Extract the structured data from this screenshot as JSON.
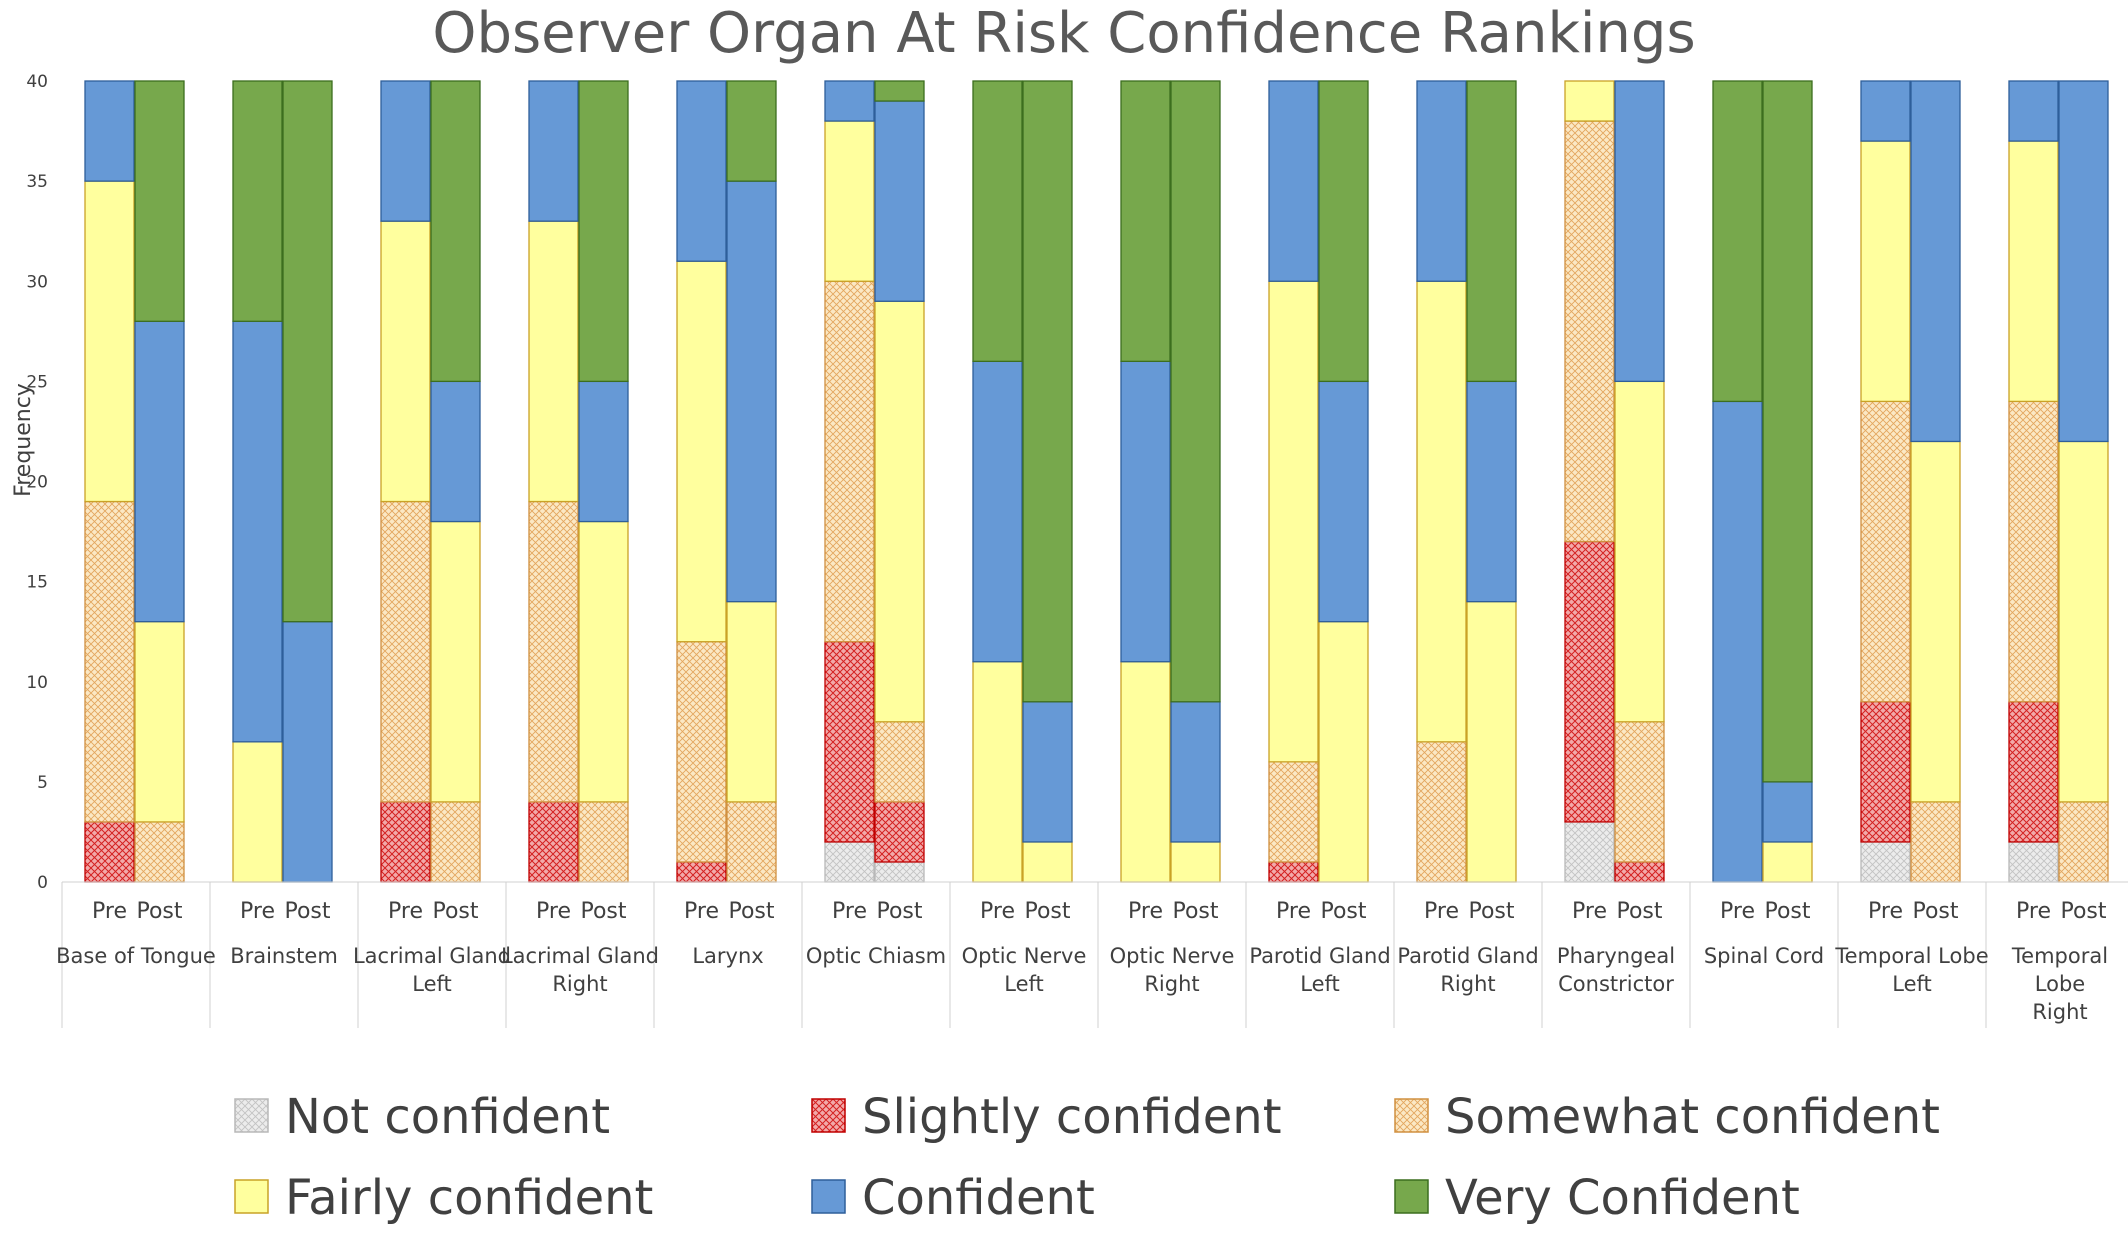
{
  "chart_data": {
    "type": "bar",
    "stacked": true,
    "title": "Observer Organ At Risk Confidence Rankings",
    "ylabel": "Frequency",
    "xlabel": "",
    "ylim": [
      0,
      40
    ],
    "yticks": [
      0,
      5,
      10,
      15,
      20,
      25,
      30,
      35,
      40
    ],
    "grid": false,
    "legend_position": "bottom",
    "sub_labels": [
      "Pre",
      "Post"
    ],
    "categories": [
      [
        "Base of Tongue"
      ],
      [
        "Brainstem"
      ],
      [
        "Lacrimal Gland",
        "Left"
      ],
      [
        "Lacrimal Gland",
        "Right"
      ],
      [
        "Larynx"
      ],
      [
        "Optic Chiasm"
      ],
      [
        "Optic Nerve",
        "Left"
      ],
      [
        "Optic Nerve",
        "Right"
      ],
      [
        "Parotid Gland",
        "Left"
      ],
      [
        "Parotid Gland",
        "Right"
      ],
      [
        "Pharyngeal",
        "Constrictor"
      ],
      [
        "Spinal Cord"
      ],
      [
        "Temporal Lobe",
        "Left"
      ],
      [
        "Temporal",
        "Lobe",
        "Right"
      ]
    ],
    "series": [
      {
        "name": "Not confident",
        "color": "#ececec",
        "stroke": "#b8b8b8",
        "pre": [
          0,
          0,
          0,
          0,
          0,
          2,
          0,
          0,
          0,
          0,
          3,
          0,
          2,
          2
        ],
        "post": [
          0,
          0,
          0,
          0,
          0,
          1,
          0,
          0,
          0,
          0,
          0,
          0,
          0,
          0
        ]
      },
      {
        "name": "Slightly confident",
        "color": "#e86a6a",
        "stroke": "#c00000",
        "pre": [
          3,
          0,
          4,
          4,
          1,
          10,
          0,
          0,
          1,
          0,
          14,
          0,
          7,
          7
        ],
        "post": [
          0,
          0,
          0,
          0,
          0,
          3,
          0,
          0,
          0,
          0,
          1,
          0,
          0,
          0
        ]
      },
      {
        "name": "Somewhat confident",
        "color": "#f6dca8",
        "stroke": "#d09040",
        "pre": [
          16,
          0,
          15,
          15,
          11,
          18,
          0,
          0,
          5,
          7,
          21,
          0,
          15,
          15
        ],
        "post": [
          3,
          0,
          4,
          4,
          4,
          4,
          0,
          0,
          0,
          0,
          7,
          0,
          4,
          4
        ]
      },
      {
        "name": "Fairly confident",
        "color": "#ffff9e",
        "stroke": "#c9a227",
        "pre": [
          16,
          7,
          14,
          14,
          19,
          8,
          11,
          11,
          24,
          23,
          2,
          0,
          13,
          13
        ],
        "post": [
          10,
          0,
          14,
          14,
          10,
          21,
          2,
          2,
          13,
          14,
          17,
          2,
          18,
          18
        ]
      },
      {
        "name": "Confident",
        "color": "#6699d6",
        "stroke": "#2e5f9a",
        "pre": [
          5,
          21,
          7,
          7,
          9,
          2,
          15,
          15,
          10,
          10,
          0,
          24,
          3,
          3
        ],
        "post": [
          15,
          13,
          7,
          7,
          21,
          10,
          7,
          7,
          12,
          11,
          15,
          3,
          18,
          18
        ]
      },
      {
        "name": "Very Confident",
        "color": "#77a84c",
        "stroke": "#3c6e1e",
        "pre": [
          0,
          12,
          0,
          0,
          0,
          0,
          14,
          14,
          0,
          0,
          0,
          16,
          0,
          0
        ],
        "post": [
          12,
          27,
          15,
          15,
          5,
          1,
          31,
          31,
          15,
          15,
          0,
          35,
          0,
          0
        ]
      }
    ]
  }
}
